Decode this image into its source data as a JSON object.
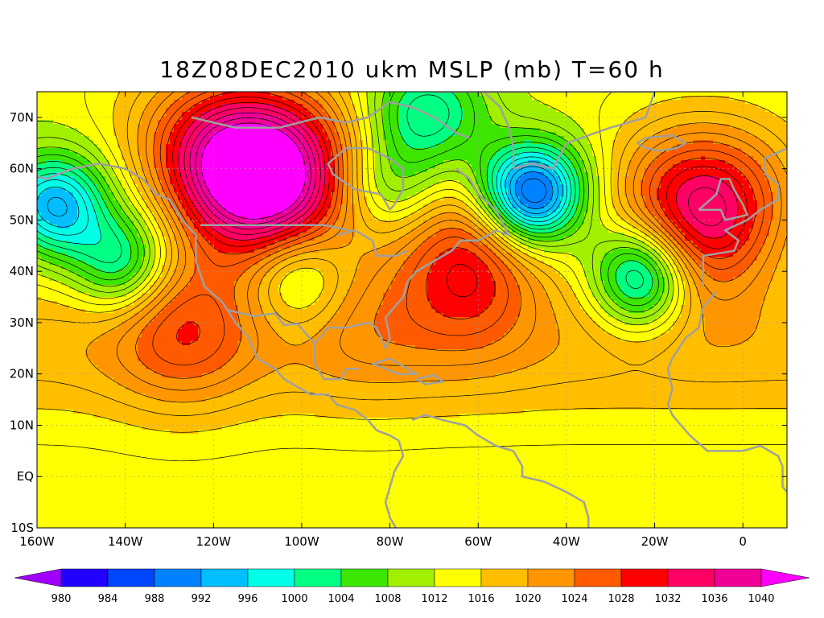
{
  "title": "18Z08DEC2010 ukm MSLP (mb) T=60 h",
  "map": {
    "lon_range": [
      -160,
      10
    ],
    "lat_range": [
      -10,
      75
    ],
    "lon_ticks": [
      {
        "value": -160,
        "label": "160W"
      },
      {
        "value": -140,
        "label": "140W"
      },
      {
        "value": -120,
        "label": "120W"
      },
      {
        "value": -100,
        "label": "100W"
      },
      {
        "value": -80,
        "label": "80W"
      },
      {
        "value": -60,
        "label": "60W"
      },
      {
        "value": -40,
        "label": "40W"
      },
      {
        "value": -20,
        "label": "20W"
      },
      {
        "value": 0,
        "label": "0"
      }
    ],
    "lat_ticks": [
      {
        "value": 70,
        "label": "70N"
      },
      {
        "value": 60,
        "label": "60N"
      },
      {
        "value": 50,
        "label": "50N"
      },
      {
        "value": 40,
        "label": "40N"
      },
      {
        "value": 30,
        "label": "30N"
      },
      {
        "value": 20,
        "label": "20N"
      },
      {
        "value": 10,
        "label": "10N"
      },
      {
        "value": 0,
        "label": "EQ"
      },
      {
        "value": -10,
        "label": "10S"
      }
    ],
    "pressure_centers": [
      {
        "type": "low",
        "lon": -48,
        "lat": 55,
        "value": 984
      },
      {
        "type": "low",
        "lon": -23,
        "lat": 39,
        "value": 996
      },
      {
        "type": "low",
        "lon": -156,
        "lat": 53,
        "value": 994
      },
      {
        "type": "low",
        "lon": -141,
        "lat": 42,
        "value": 1000
      },
      {
        "type": "low",
        "lon": -80,
        "lat": 57,
        "value": 1004
      },
      {
        "type": "low",
        "lon": -101,
        "lat": 39,
        "value": 1006
      },
      {
        "type": "low",
        "lon": -72,
        "lat": 71,
        "value": 1000
      },
      {
        "type": "high",
        "lon": -62,
        "lat": 42,
        "value": 1030
      },
      {
        "type": "high",
        "lon": -127,
        "lat": 30,
        "value": 1028
      },
      {
        "type": "high",
        "lon": -105,
        "lat": 56,
        "value": 1032
      },
      {
        "type": "high",
        "lon": -115,
        "lat": 62,
        "value": 1036
      },
      {
        "type": "high",
        "lon": -9,
        "lat": 52,
        "value": 1036
      },
      {
        "type": "high",
        "lon": -85,
        "lat": 32,
        "value": 1022
      }
    ]
  },
  "colorbar": {
    "levels": [
      "980",
      "984",
      "988",
      "992",
      "996",
      "1000",
      "1004",
      "1008",
      "1012",
      "1016",
      "1020",
      "1024",
      "1028",
      "1032",
      "1036",
      "1040"
    ],
    "colors": [
      "#a000ff",
      "#2200ff",
      "#0046ff",
      "#0082ff",
      "#00beff",
      "#00ffe6",
      "#00ff82",
      "#3ce600",
      "#a0f000",
      "#ffff00",
      "#ffbe00",
      "#ff9600",
      "#ff5a00",
      "#ff0000",
      "#ff0064",
      "#f00096",
      "#ff00ff"
    ]
  }
}
